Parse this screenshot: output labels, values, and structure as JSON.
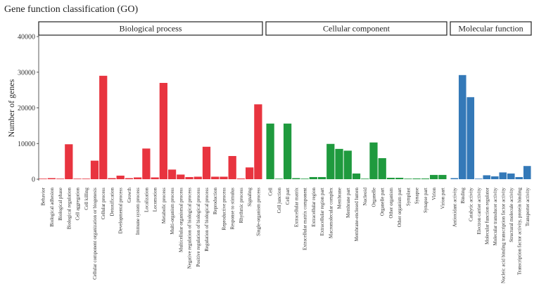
{
  "chart_data": {
    "type": "bar",
    "title": "Gene function classification (GO)",
    "ylabel": "Number of genes",
    "xlabel": "",
    "ylim": [
      0,
      40000
    ],
    "yticks": [
      0,
      10000,
      20000,
      30000,
      40000
    ],
    "facets": [
      {
        "name": "Biological process",
        "color": "#e8343f",
        "categories": [
          "Behavior",
          "Biological adhesion",
          "Biological phase",
          "Biological regulation",
          "Cell aggregation",
          "Cell killing",
          "Cellular component organization or biogenesis",
          "Cellular process",
          "Detoxification",
          "Developmental process",
          "Growth",
          "Immune system process",
          "Localization",
          "Locomotion",
          "Metabolic process",
          "Multi-organism process",
          "Multicellular organismal process",
          "Negative regulation of biological process",
          "Positive regulation of biological process",
          "Regulation of biological process",
          "Reproduction",
          "Reproductive process",
          "Response to stimulus",
          "Rhythmic process",
          "Signaling",
          "Single-organism process"
        ],
        "values": [
          100,
          300,
          100,
          9800,
          50,
          100,
          5200,
          29000,
          300,
          1000,
          300,
          500,
          8600,
          500,
          27000,
          2700,
          1300,
          600,
          700,
          9100,
          700,
          700,
          6500,
          200,
          3300,
          21000
        ]
      },
      {
        "name": "Cellular component",
        "color": "#1f9a3e",
        "categories": [
          "Cell",
          "Cell junction",
          "Cell part",
          "Extracellular matrix",
          "Extracellular matrix component",
          "Extracellular region",
          "Extracellular region part",
          "Macromolecular complex",
          "Membrane",
          "Membrane part",
          "Membrane-enclosed lumen",
          "Nucleoid",
          "Organelle",
          "Organelle part",
          "Other organism",
          "Other organism part",
          "Symplast",
          "Synapse",
          "Synapse part",
          "Virion",
          "Virion part"
        ],
        "values": [
          15600,
          100,
          15600,
          300,
          100,
          600,
          600,
          9900,
          8500,
          8000,
          1600,
          100,
          10300,
          5900,
          400,
          400,
          100,
          200,
          200,
          1200,
          1200
        ]
      },
      {
        "name": "Molecular function",
        "color": "#3479b8",
        "categories": [
          "Antioxidant activity",
          "Binding",
          "Catalytic activity",
          "Electron carrier activity",
          "Molecular function regulator",
          "Molecular transducer activity",
          "Nucleic acid binding transcription factor activity",
          "Structural molecule activity",
          "Transcription factor activity, protein binding",
          "Transporter activity"
        ],
        "values": [
          300,
          29200,
          23000,
          100,
          1100,
          800,
          1900,
          1600,
          600,
          3700
        ]
      }
    ],
    "grid": false,
    "legend": "none"
  },
  "colors": {
    "facet_border": "#222222",
    "axis": "#333333"
  }
}
